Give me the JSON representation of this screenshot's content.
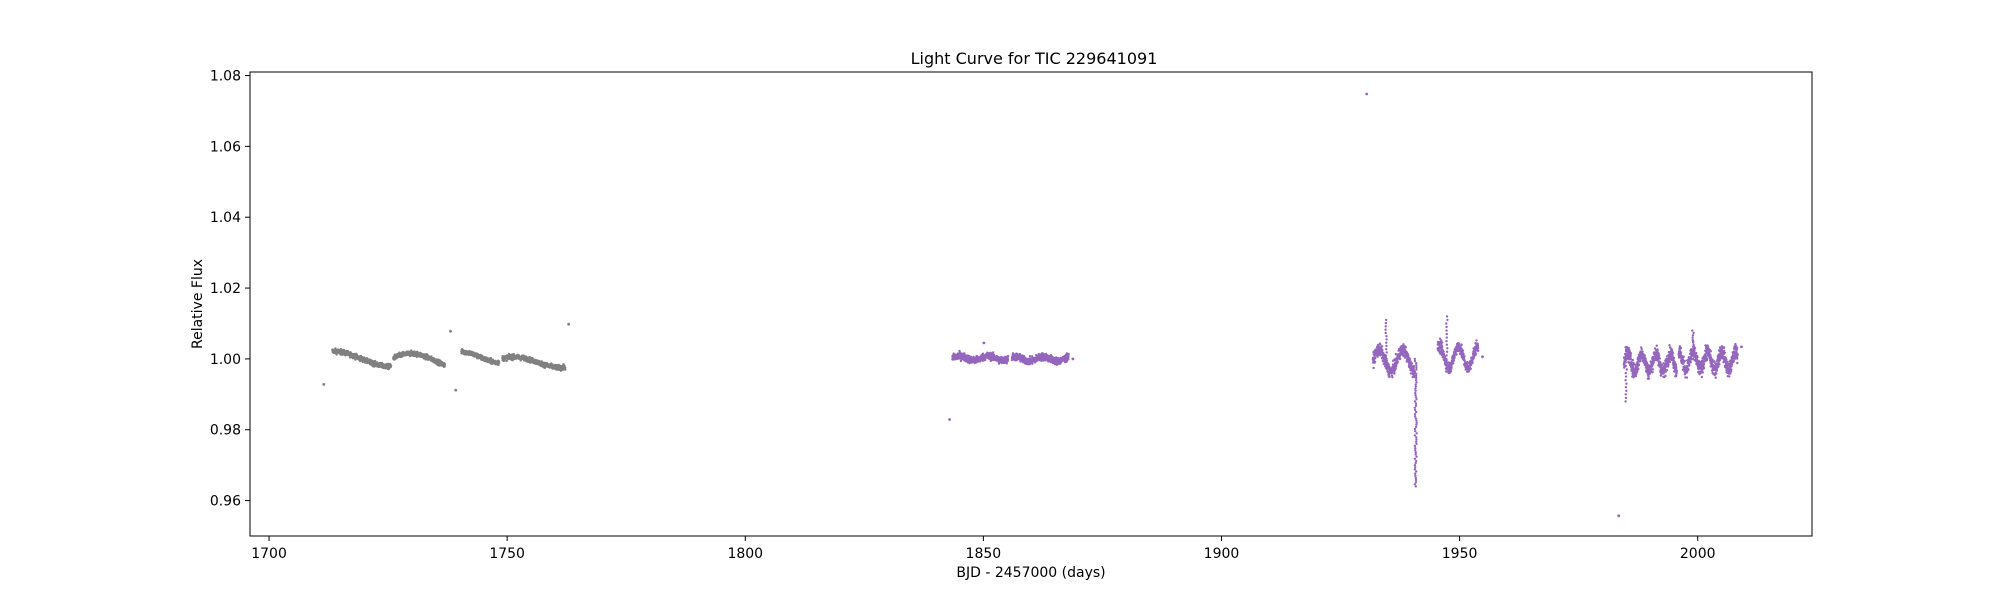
{
  "chart_data": {
    "type": "scatter",
    "title": "Light Curve for TIC 229641091",
    "xlabel": "BJD - 2457000 (days)",
    "ylabel": "Relative Flux",
    "xlim": [
      1696,
      2024
    ],
    "ylim": [
      0.95,
      1.081
    ],
    "x_ticks": [
      1700,
      1750,
      1800,
      1850,
      1900,
      1950,
      2000
    ],
    "y_ticks": [
      0.96,
      0.98,
      1.0,
      1.02,
      1.04,
      1.06,
      1.08
    ],
    "grid": false,
    "colors": {
      "gray": "#808080",
      "purple": "#9467bd"
    },
    "segments": [
      {
        "color": "gray",
        "x0": 1713.3,
        "x1": 1725.6,
        "base": 1.0,
        "amp": 0.0022,
        "period": 25,
        "phase": 1.6,
        "noise": 0.0008
      },
      {
        "color": "gray",
        "x0": 1726.1,
        "x1": 1736.9,
        "base": 0.9995,
        "amp": 0.002,
        "period": 20,
        "phase": 0.4,
        "noise": 0.0008
      },
      {
        "color": "gray",
        "x0": 1740.4,
        "x1": 1748.3,
        "base": 1.0005,
        "amp": 0.0015,
        "period": 16,
        "phase": 1.6,
        "noise": 0.0008
      },
      {
        "color": "gray",
        "x0": 1749.0,
        "x1": 1762.2,
        "base": 0.999,
        "amp": 0.0015,
        "period": 20,
        "phase": 0.8,
        "noise": 0.0008
      },
      {
        "color": "purple",
        "x0": 1843.5,
        "x1": 1855.2,
        "base": 1.0002,
        "amp": 0.0006,
        "period": 6,
        "phase": 0,
        "noise": 0.0012
      },
      {
        "color": "purple",
        "x0": 1856.0,
        "x1": 1867.9,
        "base": 1.0,
        "amp": 0.0006,
        "period": 6,
        "phase": 1,
        "noise": 0.0012
      },
      {
        "color": "purple",
        "x0": 1931.8,
        "x1": 1940.6,
        "base": 0.9995,
        "amp": 0.003,
        "period": 5,
        "phase": 0,
        "noise": 0.002
      },
      {
        "color": "purple",
        "x0": 1945.4,
        "x1": 1953.9,
        "base": 1.0005,
        "amp": 0.003,
        "period": 4,
        "phase": 1,
        "noise": 0.002
      },
      {
        "color": "purple",
        "x0": 1984.5,
        "x1": 1995.6,
        "base": 0.999,
        "amp": 0.0025,
        "period": 3,
        "phase": 0,
        "noise": 0.0025
      },
      {
        "color": "purple",
        "x0": 1996.0,
        "x1": 2008.4,
        "base": 0.9995,
        "amp": 0.0025,
        "period": 3,
        "phase": 1.5,
        "noise": 0.0025
      }
    ],
    "dip": {
      "color": "purple",
      "x": 1940.8,
      "y_top": 1.0,
      "y_bottom": 0.964
    },
    "spikes": [
      {
        "color": "purple",
        "x": 1934.6,
        "y": 1.011
      },
      {
        "color": "purple",
        "x": 1947.3,
        "y": 1.012
      },
      {
        "color": "purple",
        "x": 1985.0,
        "y": 0.988
      },
      {
        "color": "purple",
        "x": 1999.0,
        "y": 1.008
      }
    ],
    "outliers": [
      {
        "color": "gray",
        "x": 1711.5,
        "y": 0.9928
      },
      {
        "color": "gray",
        "x": 1738.1,
        "y": 1.0078
      },
      {
        "color": "gray",
        "x": 1739.2,
        "y": 0.9912
      },
      {
        "color": "gray",
        "x": 1762.9,
        "y": 1.0098
      },
      {
        "color": "purple",
        "x": 1842.9,
        "y": 0.9829
      },
      {
        "color": "purple",
        "x": 1850.1,
        "y": 1.0045
      },
      {
        "color": "purple",
        "x": 1868.8,
        "y": 1.0
      },
      {
        "color": "purple",
        "x": 1930.5,
        "y": 1.0748
      },
      {
        "color": "purple",
        "x": 1954.8,
        "y": 1.0006
      },
      {
        "color": "purple",
        "x": 1983.4,
        "y": 0.9557
      },
      {
        "color": "purple",
        "x": 2009.2,
        "y": 1.0034
      }
    ]
  }
}
